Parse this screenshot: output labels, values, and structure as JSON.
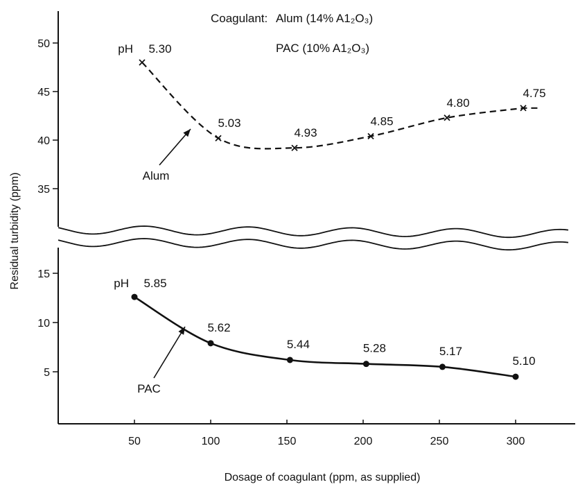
{
  "colors": {
    "ink": "#111111",
    "background": "#ffffff"
  },
  "chart_data": {
    "type": "line",
    "title": "",
    "legend_lines": [
      {
        "prefix": "Coagulant:",
        "text": "Alum (14% A1₂O₃)"
      },
      {
        "prefix": "",
        "text": "PAC (10% A1₂O₃)"
      }
    ],
    "xlabel": "Dosage of coagulant (ppm, as supplied)",
    "ylabel": "Residual turbidity (ppm)",
    "x_ticks": [
      "50",
      "100",
      "150",
      "200",
      "250",
      "300"
    ],
    "y_ticks_upper": [
      "35",
      "40",
      "45",
      "50"
    ],
    "y_ticks_lower": [
      "5",
      "10",
      "15"
    ],
    "axis_break": true,
    "grid": false,
    "series": [
      {
        "name": "Alum",
        "style": "dashed",
        "marker": "x",
        "x": [
          55,
          105,
          155,
          205,
          255,
          305
        ],
        "y": [
          48.0,
          40.2,
          39.2,
          40.4,
          42.3,
          43.3
        ],
        "ph_labels": [
          "5.30",
          "5.03",
          "4.93",
          "4.85",
          "4.80",
          "4.75"
        ],
        "ph_prefix": "pH"
      },
      {
        "name": "PAC",
        "style": "solid",
        "marker": "dot",
        "x": [
          50,
          100,
          152,
          202,
          252,
          300
        ],
        "y": [
          12.6,
          7.9,
          6.2,
          5.8,
          5.5,
          4.5
        ],
        "ph_labels": [
          "5.85",
          "5.62",
          "5.44",
          "5.28",
          "5.17",
          "5.10"
        ],
        "ph_prefix": "pH"
      }
    ]
  }
}
